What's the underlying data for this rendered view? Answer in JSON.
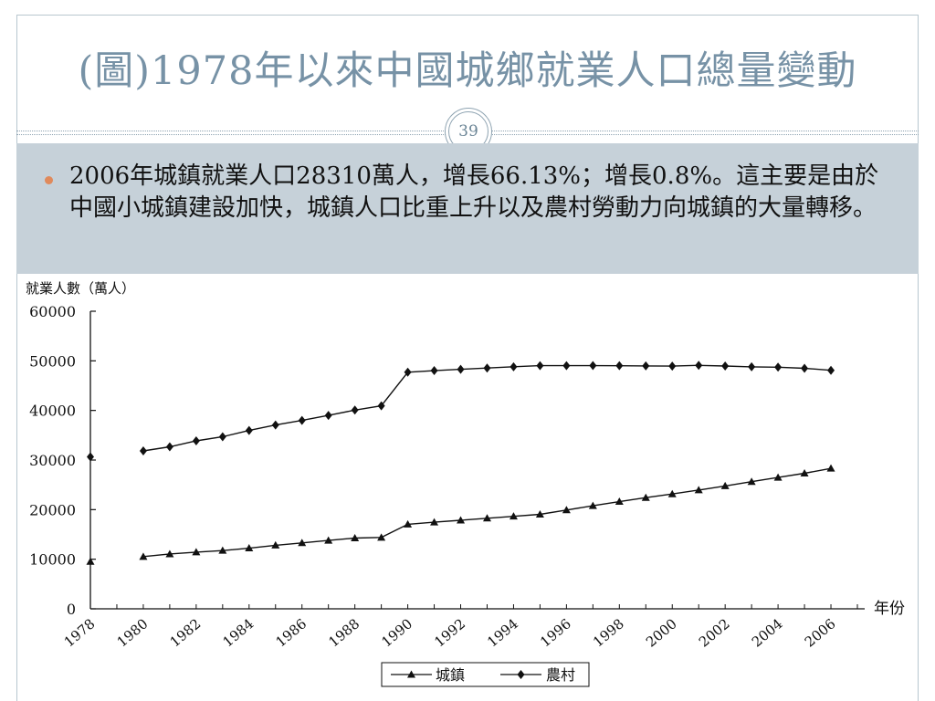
{
  "slide": {
    "title": "(圖)1978年以來中國城鄉就業人口總量變動",
    "number": "39",
    "bullet": "2006年城鎮就業人口28310萬人，增長66.13%；增長0.8%。這主要是由於中國小城鎮建設加快，城鎮人口比重上升以及農村勞動力向城鎮的大量轉移。"
  },
  "colors": {
    "title": "#7792a6",
    "band": "#c6d1d9",
    "bullet": "#e08a5c",
    "series": "#111111"
  },
  "chart_data": {
    "type": "line",
    "title": "",
    "ylabel": "就業人數（萬人）",
    "xlabel": "年份",
    "ylim": [
      0,
      60000
    ],
    "yticks": [
      "0",
      "10000",
      "20000",
      "30000",
      "40000",
      "50000",
      "60000"
    ],
    "xlim": [
      1978,
      2007
    ],
    "xticks": [
      "1978",
      "1980",
      "1982",
      "1984",
      "1986",
      "1988",
      "1990",
      "1992",
      "1994",
      "1996",
      "1998",
      "2000",
      "2002",
      "2004",
      "2006"
    ],
    "grid": false,
    "legend": "bottom",
    "series": [
      {
        "name": "城鎮",
        "marker": "triangle",
        "x": [
          1978,
          1980,
          1981,
          1982,
          1983,
          1984,
          1985,
          1986,
          1987,
          1988,
          1989,
          1990,
          1991,
          1992,
          1993,
          1994,
          1995,
          1996,
          1997,
          1998,
          1999,
          2000,
          2001,
          2002,
          2003,
          2004,
          2005,
          2006
        ],
        "values": [
          9514,
          10525,
          11053,
          11428,
          11746,
          12229,
          12808,
          13293,
          13783,
          14267,
          14390,
          17041,
          17465,
          17861,
          18262,
          18653,
          19040,
          19922,
          20781,
          21616,
          22412,
          23151,
          23940,
          24780,
          25639,
          26476,
          27331,
          28310
        ],
        "segment_breaks": [
          1
        ]
      },
      {
        "name": "農村",
        "marker": "diamond",
        "x": [
          1978,
          1980,
          1981,
          1982,
          1983,
          1984,
          1985,
          1986,
          1987,
          1988,
          1989,
          1990,
          1991,
          1992,
          1993,
          1994,
          1995,
          1996,
          1997,
          1998,
          1999,
          2000,
          2001,
          2002,
          2003,
          2004,
          2005,
          2006
        ],
        "values": [
          30638,
          31836,
          32672,
          33867,
          34690,
          35968,
          37065,
          37990,
          39000,
          40067,
          40939,
          47708,
          48026,
          48291,
          48546,
          48802,
          49025,
          49028,
          49039,
          49021,
          48982,
          48934,
          49085,
          48960,
          48793,
          48724,
          48494,
          48090
        ],
        "segment_breaks": [
          1
        ]
      }
    ]
  }
}
